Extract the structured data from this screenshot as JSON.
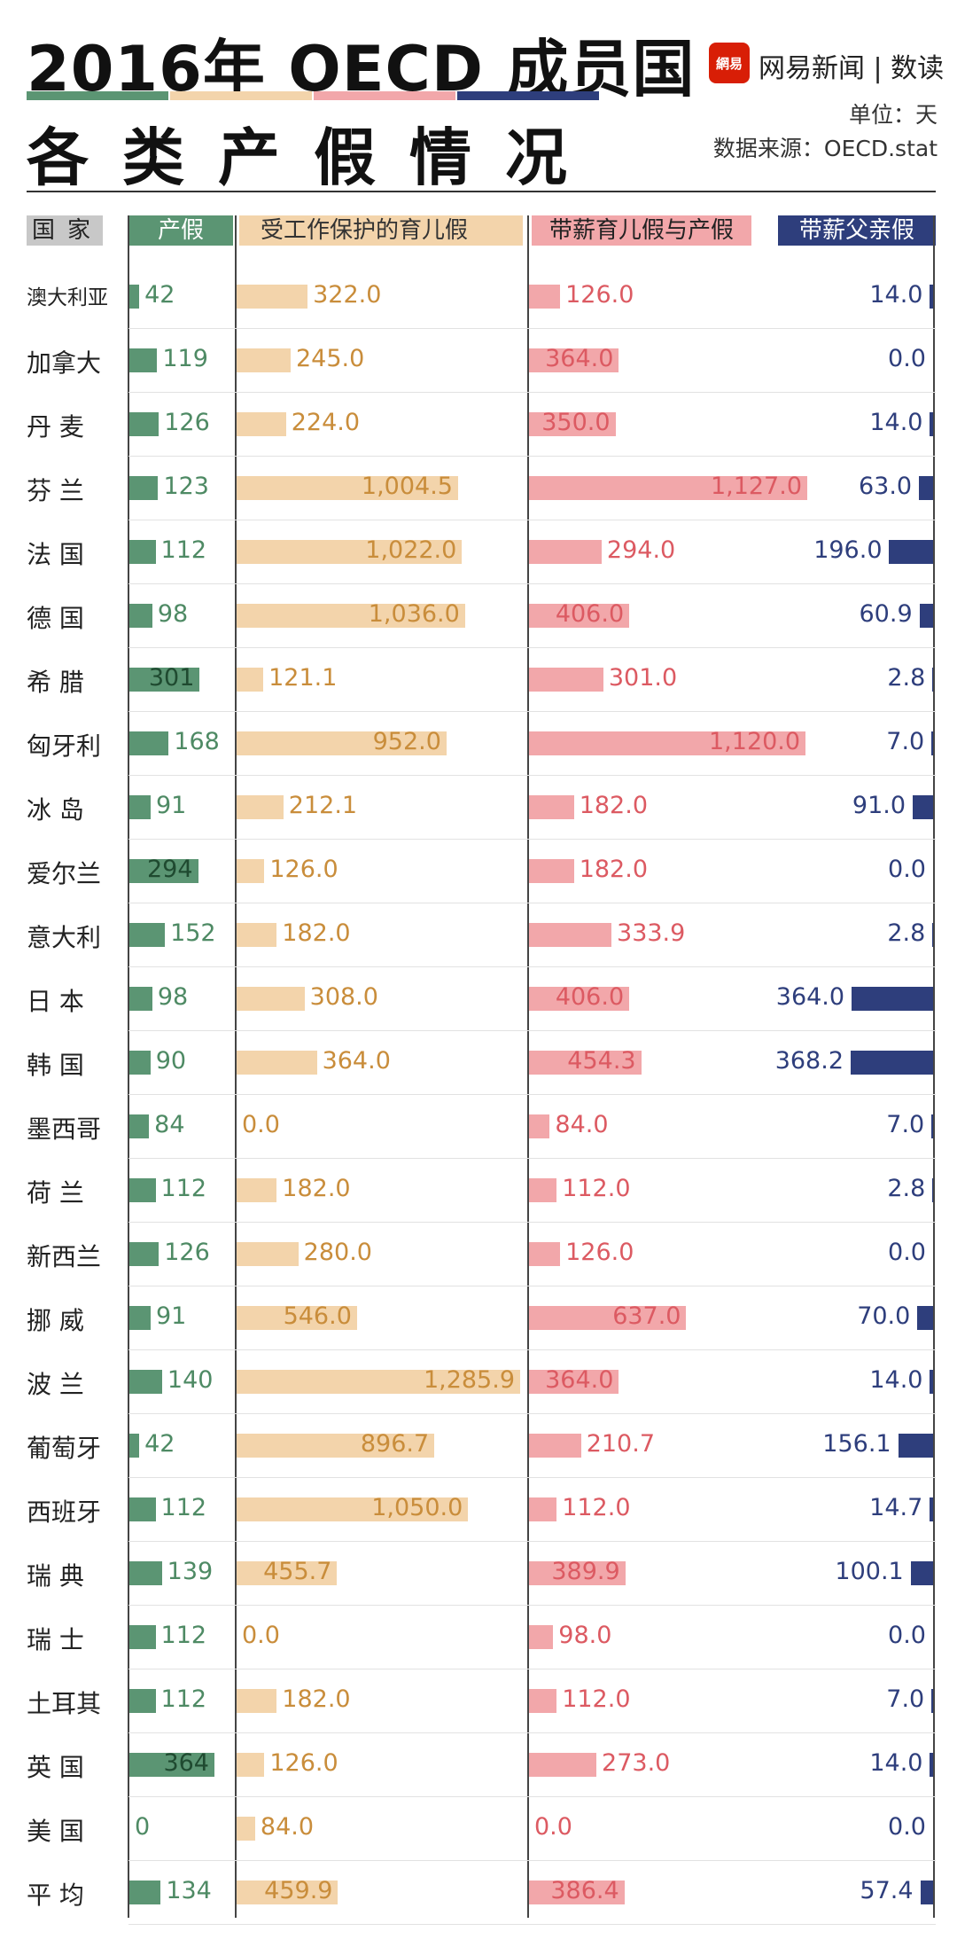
{
  "title_line1": "2016年 OECD 成员国",
  "title_line2": "各类产假情况",
  "title_colors": [
    "#5b9573",
    "#f3d4ab",
    "#f2a7aa",
    "#2e3e7c"
  ],
  "logo_glyph": "網易",
  "logo_text": "网易新闻 | 数读",
  "unit": "单位：天",
  "source": "数据来源：OECD.stat",
  "chart_data": {
    "type": "bar",
    "title": "2016年 OECD 成员国各类产假情况",
    "unit": "天",
    "header_country": "国家",
    "columns": [
      {
        "key": "maternity",
        "name": "产假",
        "color": "#5b9573",
        "max": 364,
        "format": "int"
      },
      {
        "key": "protected",
        "name": "受工作保护的育儿假",
        "color": "#f3d4ab",
        "max": 1285.9,
        "format": "dec1"
      },
      {
        "key": "paid",
        "name": "带薪育儿假与产假",
        "color": "#f2a7aa",
        "max": 1127,
        "format": "dec1"
      },
      {
        "key": "paternity",
        "name": "带薪父亲假",
        "color": "#2e3e7c",
        "max": 368.2,
        "format": "dec1"
      }
    ],
    "rows": [
      {
        "country": "澳大利亚",
        "maternity": 42,
        "protected": 322.0,
        "paid": 126.0,
        "paternity": 14.0
      },
      {
        "country": "加拿大",
        "maternity": 119,
        "protected": 245.0,
        "paid": 364.0,
        "paternity": 0.0
      },
      {
        "country": "丹 麦",
        "maternity": 126,
        "protected": 224.0,
        "paid": 350.0,
        "paternity": 14.0
      },
      {
        "country": "芬 兰",
        "maternity": 123,
        "protected": 1004.5,
        "paid": 1127.0,
        "paternity": 63.0
      },
      {
        "country": "法 国",
        "maternity": 112,
        "protected": 1022.0,
        "paid": 294.0,
        "paternity": 196.0
      },
      {
        "country": "德 国",
        "maternity": 98,
        "protected": 1036.0,
        "paid": 406.0,
        "paternity": 60.9
      },
      {
        "country": "希 腊",
        "maternity": 301,
        "protected": 121.1,
        "paid": 301.0,
        "paternity": 2.8
      },
      {
        "country": "匈牙利",
        "maternity": 168,
        "protected": 952.0,
        "paid": 1120.0,
        "paternity": 7.0
      },
      {
        "country": "冰 岛",
        "maternity": 91,
        "protected": 212.1,
        "paid": 182.0,
        "paternity": 91.0
      },
      {
        "country": "爱尔兰",
        "maternity": 294,
        "protected": 126.0,
        "paid": 182.0,
        "paternity": 0.0
      },
      {
        "country": "意大利",
        "maternity": 152,
        "protected": 182.0,
        "paid": 333.9,
        "paternity": 2.8
      },
      {
        "country": "日 本",
        "maternity": 98,
        "protected": 308.0,
        "paid": 406.0,
        "paternity": 364.0
      },
      {
        "country": "韩 国",
        "maternity": 90,
        "protected": 364.0,
        "paid": 454.3,
        "paternity": 368.2
      },
      {
        "country": "墨西哥",
        "maternity": 84,
        "protected": 0.0,
        "paid": 84.0,
        "paternity": 7.0
      },
      {
        "country": "荷 兰",
        "maternity": 112,
        "protected": 182.0,
        "paid": 112.0,
        "paternity": 2.8
      },
      {
        "country": "新西兰",
        "maternity": 126,
        "protected": 280.0,
        "paid": 126.0,
        "paternity": 0.0
      },
      {
        "country": "挪 威",
        "maternity": 91,
        "protected": 546.0,
        "paid": 637.0,
        "paternity": 70.0
      },
      {
        "country": "波 兰",
        "maternity": 140,
        "protected": 1285.9,
        "paid": 364.0,
        "paternity": 14.0
      },
      {
        "country": "葡萄牙",
        "maternity": 42,
        "protected": 896.7,
        "paid": 210.7,
        "paternity": 156.1
      },
      {
        "country": "西班牙",
        "maternity": 112,
        "protected": 1050.0,
        "paid": 112.0,
        "paternity": 14.7
      },
      {
        "country": "瑞 典",
        "maternity": 139,
        "protected": 455.7,
        "paid": 389.9,
        "paternity": 100.1
      },
      {
        "country": "瑞 士",
        "maternity": 112,
        "protected": 0.0,
        "paid": 98.0,
        "paternity": 0.0
      },
      {
        "country": "土耳其",
        "maternity": 112,
        "protected": 182.0,
        "paid": 112.0,
        "paternity": 7.0
      },
      {
        "country": "英 国",
        "maternity": 364,
        "protected": 126.0,
        "paid": 273.0,
        "paternity": 14.0
      },
      {
        "country": "美 国",
        "maternity": 0,
        "protected": 84.0,
        "paid": 0.0,
        "paternity": 0.0
      },
      {
        "country": "平 均",
        "maternity": 134,
        "protected": 459.9,
        "paid": 386.4,
        "paternity": 57.4
      }
    ]
  }
}
